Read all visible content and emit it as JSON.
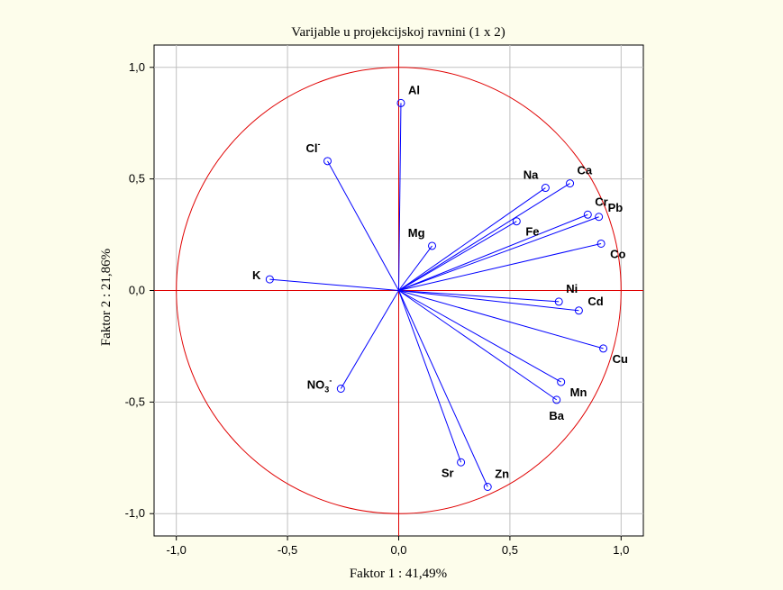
{
  "chart_data": {
    "type": "scatter",
    "title": "Varijable u projekcijskoj ravnini (1 x 2)",
    "xlabel": "Faktor 1 : 41,49%",
    "ylabel": "Faktor 2 : 21,86%",
    "xlim": [
      -1.1,
      1.1
    ],
    "ylim": [
      -1.1,
      1.1
    ],
    "x_ticks": [
      -1.0,
      -0.5,
      0.0,
      0.5,
      1.0
    ],
    "x_tick_labels": [
      "-1,0",
      "-0,5",
      "0,0",
      "0,5",
      "1,0"
    ],
    "y_ticks": [
      1.0,
      0.5,
      0.0,
      -0.5,
      -1.0
    ],
    "y_tick_labels": [
      "1,0",
      "0,5",
      "0,0",
      "-0,5",
      "-1,0"
    ],
    "grid": true,
    "unit_circle": true,
    "colors": {
      "vector": "#0000ff",
      "circle": "#e00000",
      "axis_zero": "#e00000",
      "grid": "#c0c0c0"
    },
    "points": [
      {
        "label": "Al",
        "x": 0.01,
        "y": 0.84,
        "label_pos": "upper-right"
      },
      {
        "label": "Cl",
        "sup": "-",
        "x": -0.32,
        "y": 0.58,
        "label_pos": "upper-left"
      },
      {
        "label": "Na",
        "x": 0.66,
        "y": 0.46,
        "label_pos": "upper-left"
      },
      {
        "label": "Ca",
        "x": 0.77,
        "y": 0.48,
        "label_pos": "upper-right"
      },
      {
        "label": "Cr",
        "x": 0.85,
        "y": 0.34,
        "label_pos": "upper-right"
      },
      {
        "label": "Pb",
        "x": 0.9,
        "y": 0.33,
        "label_pos": "right"
      },
      {
        "label": "Fe",
        "x": 0.53,
        "y": 0.31,
        "label_pos": "lower-right"
      },
      {
        "label": "Mg",
        "x": 0.15,
        "y": 0.2,
        "label_pos": "upper-left"
      },
      {
        "label": "Co",
        "x": 0.91,
        "y": 0.21,
        "label_pos": "lower-right"
      },
      {
        "label": "K",
        "x": -0.58,
        "y": 0.05,
        "label_pos": "left"
      },
      {
        "label": "Ni",
        "x": 0.72,
        "y": -0.05,
        "label_pos": "upper-right"
      },
      {
        "label": "Cd",
        "x": 0.81,
        "y": -0.09,
        "label_pos": "right"
      },
      {
        "label": "Cu",
        "x": 0.92,
        "y": -0.26,
        "label_pos": "lower-right"
      },
      {
        "label": "Mn",
        "x": 0.73,
        "y": -0.41,
        "label_pos": "lower-right"
      },
      {
        "label": "Ba",
        "x": 0.71,
        "y": -0.49,
        "label_pos": "below"
      },
      {
        "label": "NO",
        "sub": "3",
        "sup": "-",
        "x": -0.26,
        "y": -0.44,
        "label_pos": "left"
      },
      {
        "label": "Sr",
        "x": 0.28,
        "y": -0.77,
        "label_pos": "lower-left"
      },
      {
        "label": "Zn",
        "x": 0.4,
        "y": -0.88,
        "label_pos": "upper-right"
      }
    ]
  }
}
